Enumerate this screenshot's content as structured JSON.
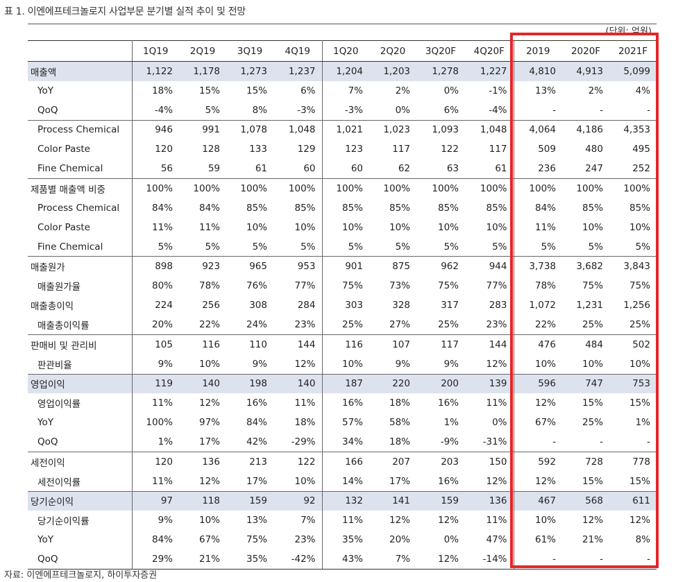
{
  "title": "표 1. 이엔에프테크놀로지 사업부문 분기별 실적 추이 및 전망",
  "unit": "(단위: 억원)",
  "source": "자료: 이엔에프테크놀로지, 하이투자증권",
  "colors": {
    "highlight_row": "#dde3ee",
    "annotation_box": "#e52528"
  },
  "columns": [
    "1Q19",
    "2Q19",
    "3Q19",
    "4Q19",
    "1Q20",
    "2Q20",
    "3Q20F",
    "4Q20F",
    "2019",
    "2020F",
    "2021F"
  ],
  "rows": [
    {
      "label": "매출액",
      "values": [
        "1,122",
        "1,178",
        "1,273",
        "1,237",
        "1,204",
        "1,203",
        "1,278",
        "1,227",
        "4,810",
        "4,913",
        "5,099"
      ]
    },
    {
      "label": "YoY",
      "values": [
        "18%",
        "15%",
        "15%",
        "6%",
        "7%",
        "2%",
        "0%",
        "-1%",
        "13%",
        "2%",
        "4%"
      ]
    },
    {
      "label": "QoQ",
      "values": [
        "-4%",
        "5%",
        "8%",
        "-3%",
        "-3%",
        "0%",
        "6%",
        "-4%",
        "-",
        "-",
        "-"
      ]
    },
    {
      "label": "Process Chemical",
      "values": [
        "946",
        "991",
        "1,078",
        "1,048",
        "1,021",
        "1,023",
        "1,093",
        "1,048",
        "4,064",
        "4,186",
        "4,353"
      ]
    },
    {
      "label": "Color Paste",
      "values": [
        "120",
        "128",
        "133",
        "129",
        "123",
        "117",
        "122",
        "117",
        "509",
        "480",
        "495"
      ]
    },
    {
      "label": "Fine Chemical",
      "values": [
        "56",
        "59",
        "61",
        "60",
        "60",
        "62",
        "63",
        "61",
        "236",
        "247",
        "252"
      ]
    },
    {
      "label": "제품별 매출액 비중",
      "values": [
        "100%",
        "100%",
        "100%",
        "100%",
        "100%",
        "100%",
        "100%",
        "100%",
        "100%",
        "100%",
        "100%"
      ]
    },
    {
      "label": "Process Chemical",
      "values": [
        "84%",
        "84%",
        "85%",
        "85%",
        "85%",
        "85%",
        "85%",
        "85%",
        "84%",
        "85%",
        "85%"
      ]
    },
    {
      "label": "Color Paste",
      "values": [
        "11%",
        "11%",
        "10%",
        "10%",
        "10%",
        "10%",
        "10%",
        "10%",
        "11%",
        "10%",
        "10%"
      ]
    },
    {
      "label": "Fine Chemical",
      "values": [
        "5%",
        "5%",
        "5%",
        "5%",
        "5%",
        "5%",
        "5%",
        "5%",
        "5%",
        "5%",
        "5%"
      ]
    },
    {
      "label": "매출원가",
      "values": [
        "898",
        "923",
        "965",
        "953",
        "901",
        "875",
        "962",
        "944",
        "3,738",
        "3,682",
        "3,843"
      ]
    },
    {
      "label": "매출원가율",
      "values": [
        "80%",
        "78%",
        "76%",
        "77%",
        "75%",
        "73%",
        "75%",
        "77%",
        "78%",
        "75%",
        "75%"
      ]
    },
    {
      "label": "매출총이익",
      "values": [
        "224",
        "256",
        "308",
        "284",
        "303",
        "328",
        "317",
        "283",
        "1,072",
        "1,231",
        "1,256"
      ]
    },
    {
      "label": "매출총이익률",
      "values": [
        "20%",
        "22%",
        "24%",
        "23%",
        "25%",
        "27%",
        "25%",
        "23%",
        "22%",
        "25%",
        "25%"
      ]
    },
    {
      "label": "판매비 및 관리비",
      "values": [
        "105",
        "116",
        "110",
        "144",
        "116",
        "107",
        "117",
        "144",
        "476",
        "484",
        "502"
      ]
    },
    {
      "label": "판관비율",
      "values": [
        "9%",
        "10%",
        "9%",
        "12%",
        "10%",
        "9%",
        "9%",
        "12%",
        "10%",
        "10%",
        "10%"
      ]
    },
    {
      "label": "영업이익",
      "values": [
        "119",
        "140",
        "198",
        "140",
        "187",
        "220",
        "200",
        "139",
        "596",
        "747",
        "753"
      ]
    },
    {
      "label": "영업이익률",
      "values": [
        "11%",
        "12%",
        "16%",
        "11%",
        "16%",
        "18%",
        "16%",
        "11%",
        "12%",
        "15%",
        "15%"
      ]
    },
    {
      "label": "YoY",
      "values": [
        "100%",
        "97%",
        "84%",
        "18%",
        "57%",
        "58%",
        "1%",
        "0%",
        "67%",
        "25%",
        "1%"
      ]
    },
    {
      "label": "QoQ",
      "values": [
        "1%",
        "17%",
        "42%",
        "-29%",
        "34%",
        "18%",
        "-9%",
        "-31%",
        "-",
        "-",
        "-"
      ]
    },
    {
      "label": "세전이익",
      "values": [
        "120",
        "136",
        "213",
        "122",
        "166",
        "207",
        "203",
        "150",
        "592",
        "728",
        "778"
      ]
    },
    {
      "label": "세전이익률",
      "values": [
        "11%",
        "12%",
        "17%",
        "10%",
        "14%",
        "17%",
        "16%",
        "12%",
        "12%",
        "15%",
        "15%"
      ]
    },
    {
      "label": "당기순이익",
      "values": [
        "97",
        "118",
        "159",
        "92",
        "132",
        "141",
        "159",
        "136",
        "467",
        "568",
        "611"
      ]
    },
    {
      "label": "당기순이익률",
      "values": [
        "9%",
        "10%",
        "13%",
        "7%",
        "11%",
        "12%",
        "12%",
        "11%",
        "10%",
        "12%",
        "12%"
      ]
    },
    {
      "label": "YoY",
      "values": [
        "84%",
        "67%",
        "75%",
        "23%",
        "35%",
        "20%",
        "0%",
        "47%",
        "61%",
        "21%",
        "8%"
      ]
    },
    {
      "label": "QoQ",
      "values": [
        "29%",
        "21%",
        "35%",
        "-42%",
        "43%",
        "7%",
        "12%",
        "-14%",
        "-",
        "-",
        "-"
      ]
    }
  ]
}
